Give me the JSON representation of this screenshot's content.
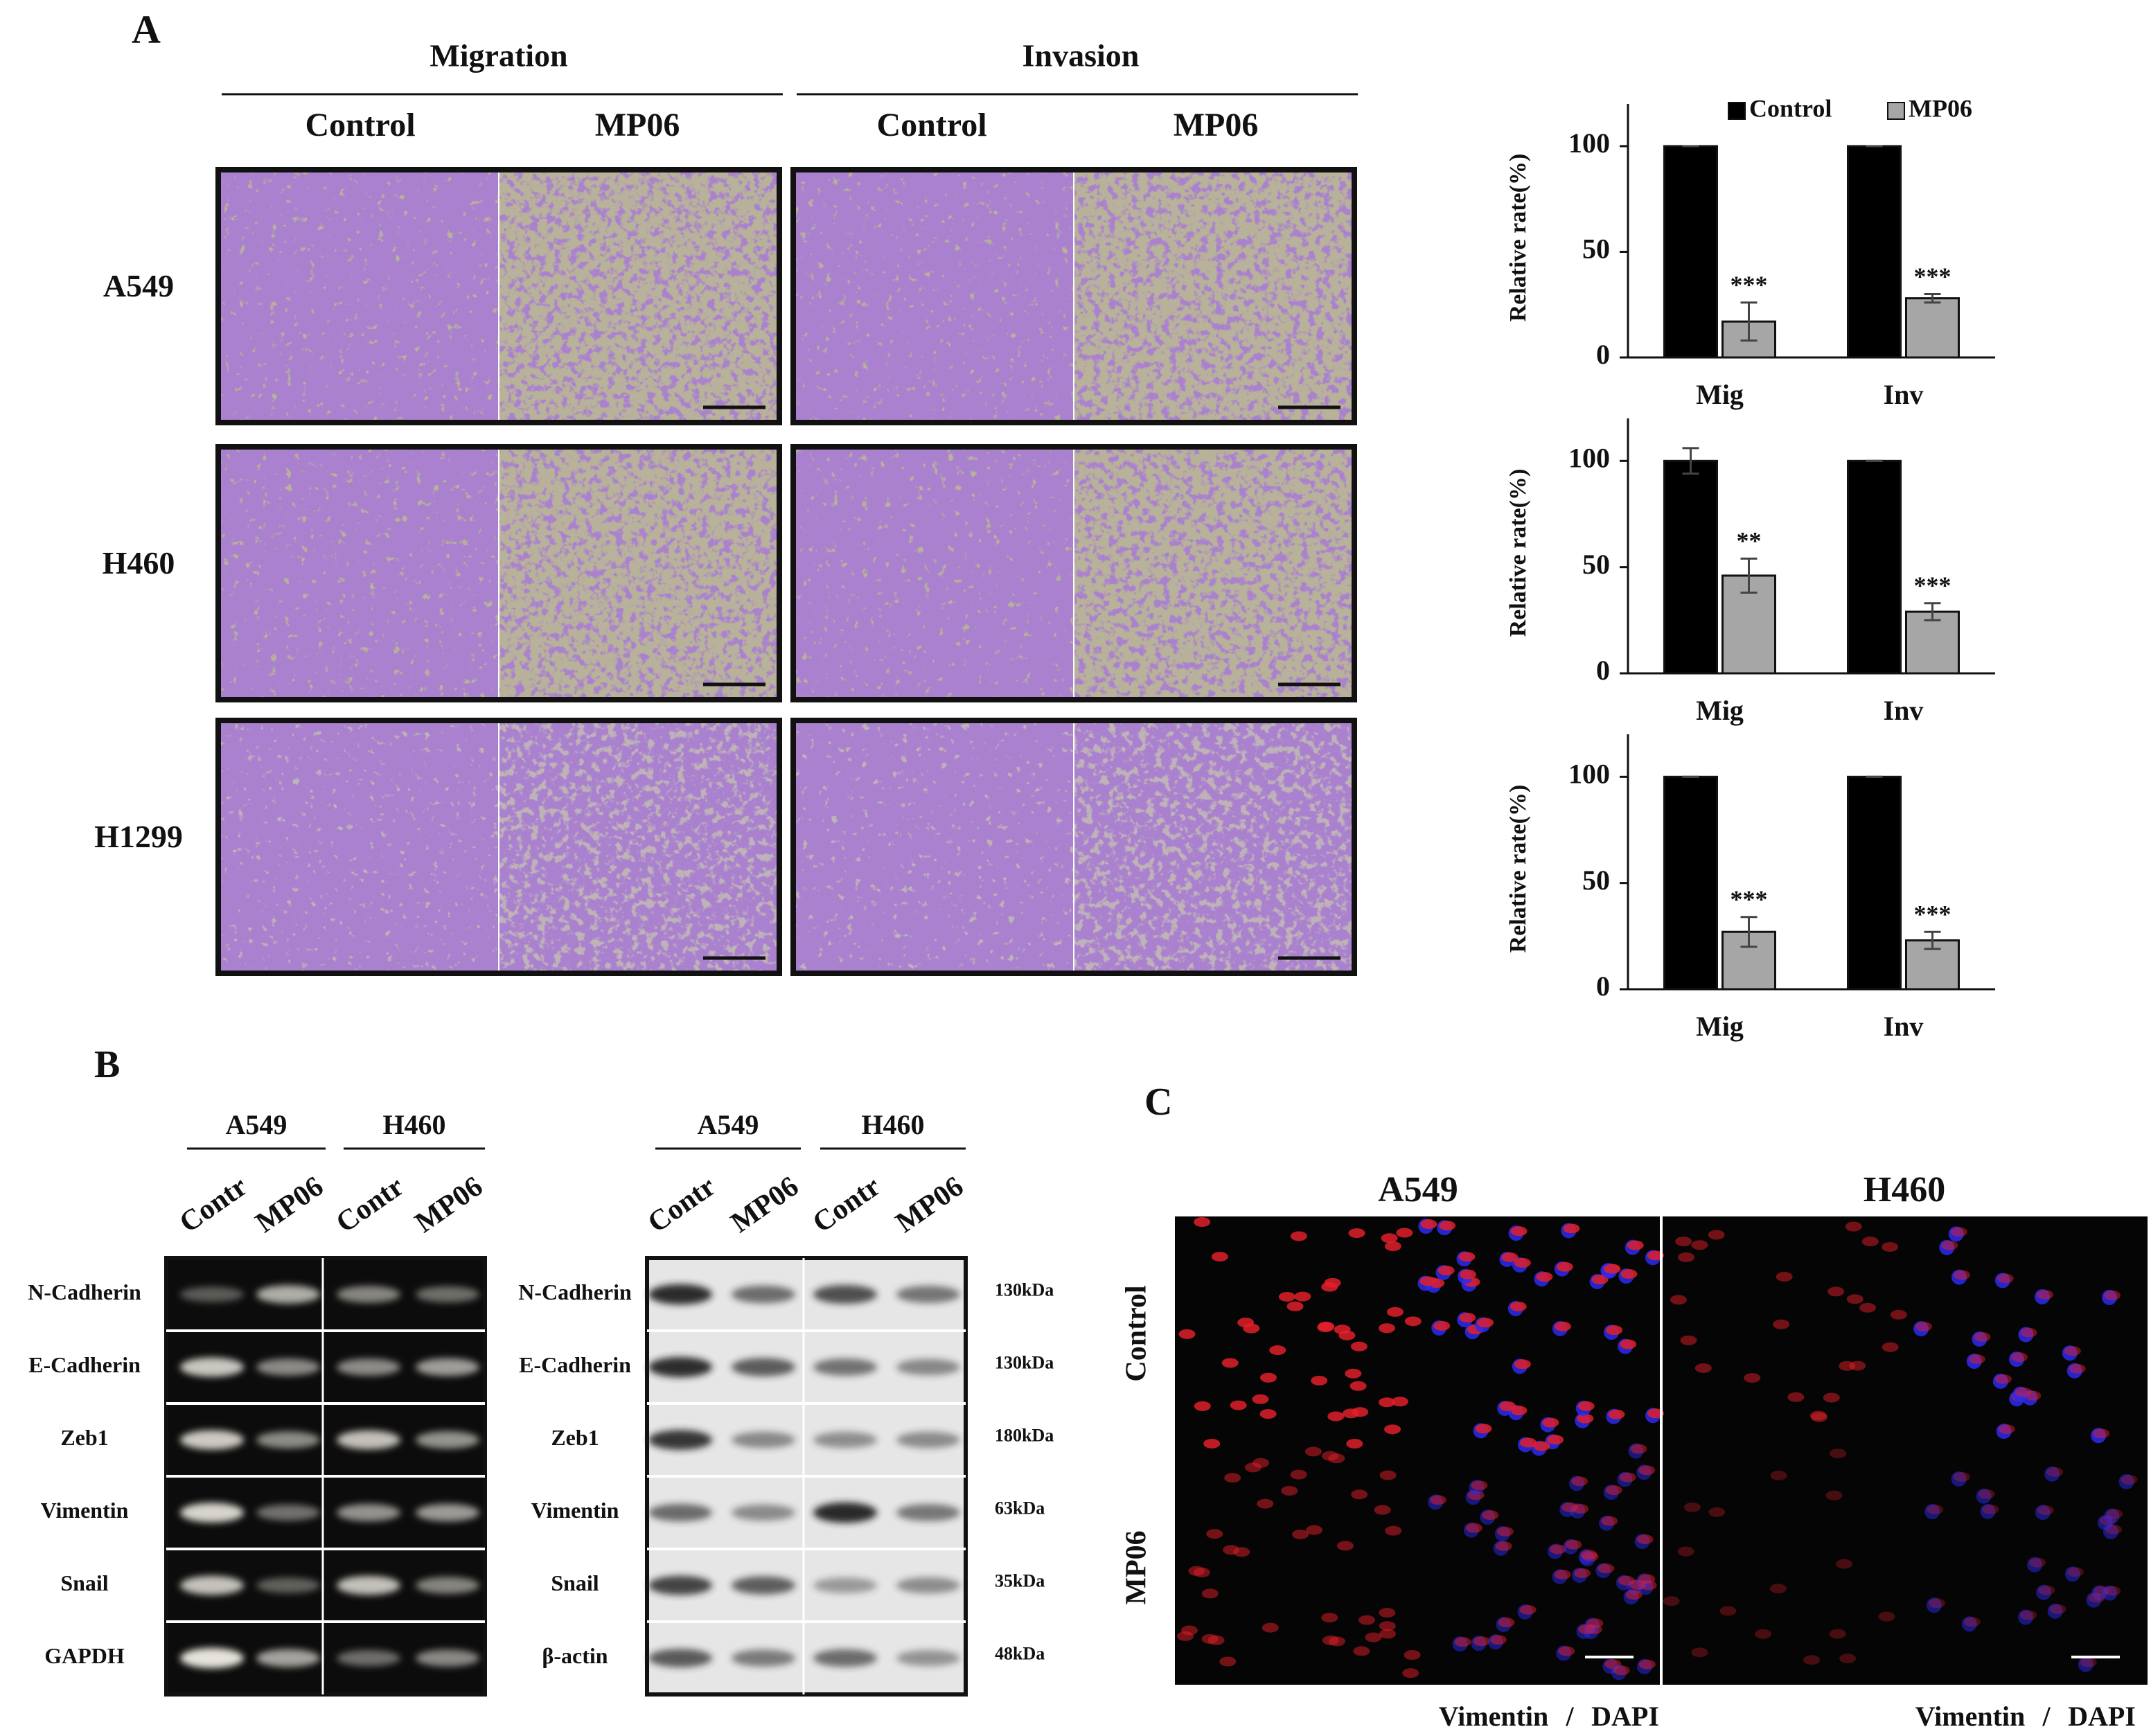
{
  "panel_a": {
    "label": "A",
    "groups": [
      "Migration",
      "Invasion"
    ],
    "conditions": [
      "Control",
      "MP06",
      "Control",
      "MP06"
    ],
    "cell_lines": [
      "A549",
      "H460",
      "H1299"
    ]
  },
  "chart_data": [
    {
      "type": "bar",
      "ylabel": "Relative rate(%)",
      "categories": [
        "Mig",
        "Inv"
      ],
      "ylim": [
        0,
        120
      ],
      "yticks": [
        0,
        50,
        100
      ],
      "legend": "upper right",
      "series": [
        {
          "name": "Control",
          "color": "#000000",
          "values": [
            100,
            100
          ],
          "errors": [
            0,
            0
          ]
        },
        {
          "name": "MP06",
          "color": "#a6a6a6",
          "values": [
            17,
            28
          ],
          "errors": [
            9,
            2
          ],
          "significance": [
            "***",
            "***"
          ]
        }
      ]
    },
    {
      "type": "bar",
      "ylabel": "Relative rate(%)",
      "categories": [
        "Mig",
        "Inv"
      ],
      "ylim": [
        0,
        120
      ],
      "yticks": [
        0,
        50,
        100
      ],
      "series": [
        {
          "color": "#000000",
          "values": [
            100,
            100
          ],
          "errors": [
            6,
            0
          ]
        },
        {
          "color": "#a6a6a6",
          "values": [
            46,
            29
          ],
          "errors": [
            8,
            4
          ],
          "significance": [
            "**",
            "***"
          ]
        }
      ]
    },
    {
      "type": "bar",
      "ylabel": "Relative rate(%)",
      "categories": [
        "Mig",
        "Inv"
      ],
      "ylim": [
        0,
        120
      ],
      "yticks": [
        0,
        50,
        100
      ],
      "series": [
        {
          "color": "#000000",
          "values": [
            100,
            100
          ],
          "errors": [
            0,
            0
          ]
        },
        {
          "color": "#a6a6a6",
          "values": [
            27,
            23
          ],
          "errors": [
            7,
            4
          ],
          "significance": [
            "***",
            "***"
          ]
        }
      ]
    }
  ],
  "panel_b": {
    "label": "B",
    "rt_pcr": {
      "cell_lines": [
        "A549",
        "H460"
      ],
      "lanes": [
        "Contr",
        "MP06",
        "Contr",
        "MP06"
      ],
      "genes": [
        "N-Cadherin",
        "E-Cadherin",
        "Zeb1",
        "Vimentin",
        "Snail",
        "GAPDH"
      ]
    },
    "western": {
      "cell_lines": [
        "A549",
        "H460"
      ],
      "lanes": [
        "Contr",
        "MP06",
        "Contr",
        "MP06"
      ],
      "proteins": [
        "N-Cadherin",
        "E-Cadherin",
        "Zeb1",
        "Vimentin",
        "Snail",
        "β-actin"
      ],
      "sizes": [
        "130kDa",
        "130kDa",
        "180kDa",
        "63kDa",
        "35kDa",
        "48kDa"
      ]
    }
  },
  "panel_c": {
    "label": "C",
    "cell_lines": [
      "A549",
      "H460"
    ],
    "conditions": [
      "Control",
      "MP06"
    ],
    "stain": [
      "Vimentin",
      "/",
      "DAPI"
    ]
  }
}
